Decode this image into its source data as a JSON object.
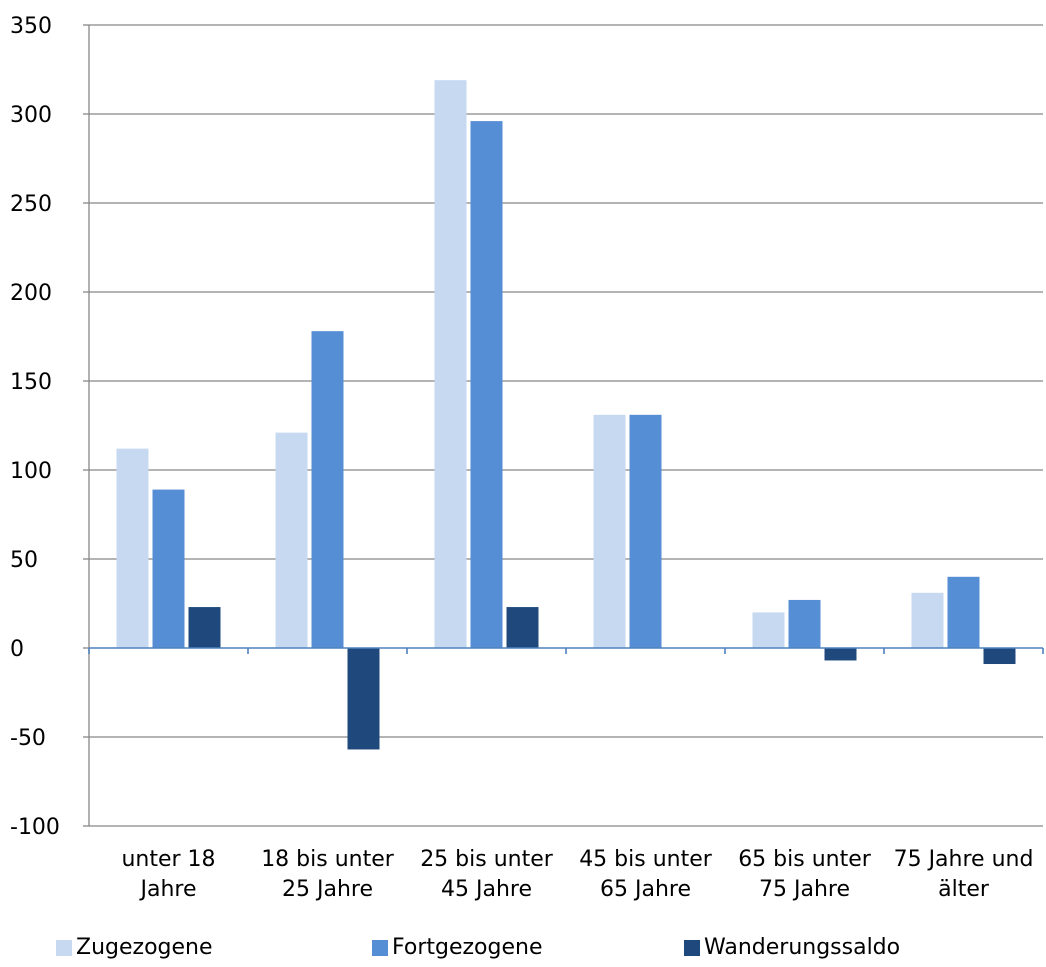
{
  "chart_data": {
    "type": "bar",
    "categories": [
      [
        "unter 18",
        "Jahre"
      ],
      [
        "18 bis unter",
        "25 Jahre"
      ],
      [
        "25 bis unter",
        "45 Jahre"
      ],
      [
        "45 bis unter",
        "65 Jahre"
      ],
      [
        "65 bis unter",
        "75 Jahre"
      ],
      [
        "75 Jahre und",
        "älter"
      ]
    ],
    "series": [
      {
        "name": "Zugezogene",
        "color": "#c6d9f1",
        "values": [
          112,
          121,
          319,
          131,
          20,
          31
        ]
      },
      {
        "name": "Fortgezogene",
        "color": "#558ed5",
        "values": [
          89,
          178,
          296,
          131,
          27,
          40
        ]
      },
      {
        "name": "Wanderungssaldo",
        "color": "#1f497d",
        "values": [
          23,
          -57,
          23,
          0,
          -7,
          -9
        ]
      }
    ],
    "ylim": [
      -100,
      350
    ],
    "yticks": [
      "350",
      "300",
      "250",
      "200",
      "150",
      "100",
      "50",
      "0",
      "-50",
      "-100"
    ],
    "grid": true,
    "legend_position": "bottom",
    "title": "",
    "xlabel": "",
    "ylabel": ""
  }
}
